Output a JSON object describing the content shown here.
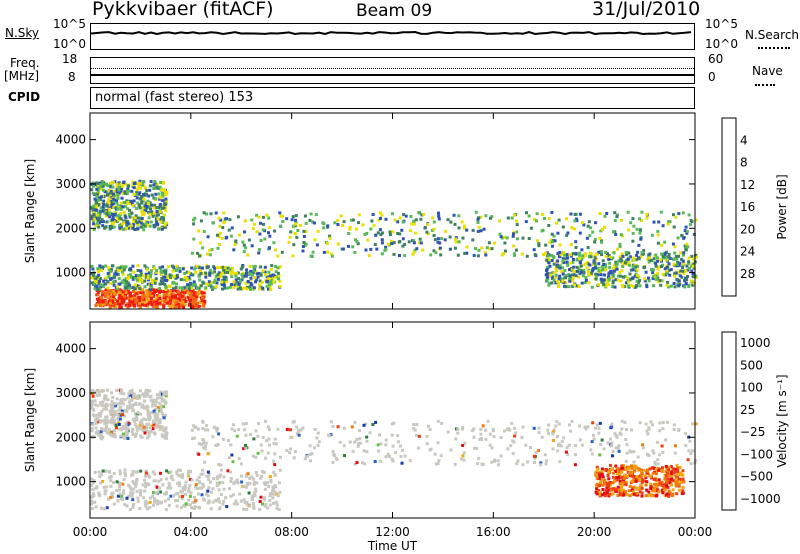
{
  "header": {
    "station": "Pykkvibaer (fitACF)",
    "beam": "Beam 09",
    "date": "31/Jul/2010"
  },
  "nsky_panel": {
    "label": "N.Sky",
    "right_label": "N.Search",
    "left_ticks": [
      "10^5",
      "10^0"
    ],
    "right_ticks": [
      "10^5",
      "10^0"
    ]
  },
  "freq_panel": {
    "label_line1": "Freq.",
    "label_line2": "[MHz]",
    "right_label": "Nave",
    "left_ticks": [
      "18",
      "8"
    ],
    "right_ticks": [
      "60",
      "0"
    ]
  },
  "cpid_panel": {
    "label": "CPID",
    "text": "normal (fast stereo) 153"
  },
  "chart_data": [
    {
      "type": "heatmap",
      "name": "power",
      "ylabel": "Slant Range [km]",
      "ylim": [
        180,
        4600
      ],
      "yticks": [
        "1000",
        "2000",
        "3000",
        "4000"
      ],
      "colorbar": {
        "label": "Power [dB]",
        "ticks": [
          "4",
          "8",
          "12",
          "16",
          "20",
          "24",
          "28"
        ],
        "colors": [
          "#1528f0",
          "#2f53b3",
          "#3d7f60",
          "#58b957",
          "#e9e000",
          "#f3a310",
          "#f26a14",
          "#f01a10"
        ]
      },
      "bands": [
        {
          "x": [
            "00:10",
            "04:30"
          ],
          "y": [
            250,
            650
          ],
          "level": "strong"
        },
        {
          "x": [
            "00:00",
            "07:30"
          ],
          "y": [
            650,
            1200
          ],
          "level": "medium"
        },
        {
          "x": [
            "00:00",
            "03:00"
          ],
          "y": [
            2000,
            3100
          ],
          "level": "medium"
        },
        {
          "x": [
            "04:00",
            "24:00"
          ],
          "y": [
            1400,
            2400
          ],
          "level": "medium"
        },
        {
          "x": [
            "18:00",
            "24:00"
          ],
          "y": [
            700,
            1500
          ],
          "level": "medium"
        }
      ]
    },
    {
      "type": "heatmap",
      "name": "velocity",
      "xlabel": "Time UT",
      "ylabel": "Slant Range [km]",
      "ylim": [
        180,
        4600
      ],
      "yticks": [
        "1000",
        "2000",
        "3000",
        "4000"
      ],
      "xticks": [
        "00:00",
        "04:00",
        "08:00",
        "12:00",
        "16:00",
        "20:00",
        "00:00"
      ],
      "colorbar": {
        "label": "Velocity [m s⁻¹]",
        "ticks": [
          "1000",
          "500",
          "100",
          "25",
          "−25",
          "−100",
          "−500",
          "−1000"
        ],
        "colors": [
          "#1538a8",
          "#2a60c8",
          "#2e7a3c",
          "#61c040",
          "#c8c8c0",
          "#f5a60d",
          "#f07a10",
          "#f03c10",
          "#e00a10"
        ]
      },
      "bands": [
        {
          "x": [
            "00:00",
            "07:30"
          ],
          "y": [
            400,
            1300
          ],
          "level": "grey"
        },
        {
          "x": [
            "00:00",
            "03:00"
          ],
          "y": [
            2000,
            3100
          ],
          "level": "grey"
        },
        {
          "x": [
            "04:00",
            "24:00"
          ],
          "y": [
            1400,
            2400
          ],
          "level": "grey"
        },
        {
          "x": [
            "20:00",
            "23:30"
          ],
          "y": [
            700,
            1400
          ],
          "level": "negative"
        }
      ]
    }
  ]
}
